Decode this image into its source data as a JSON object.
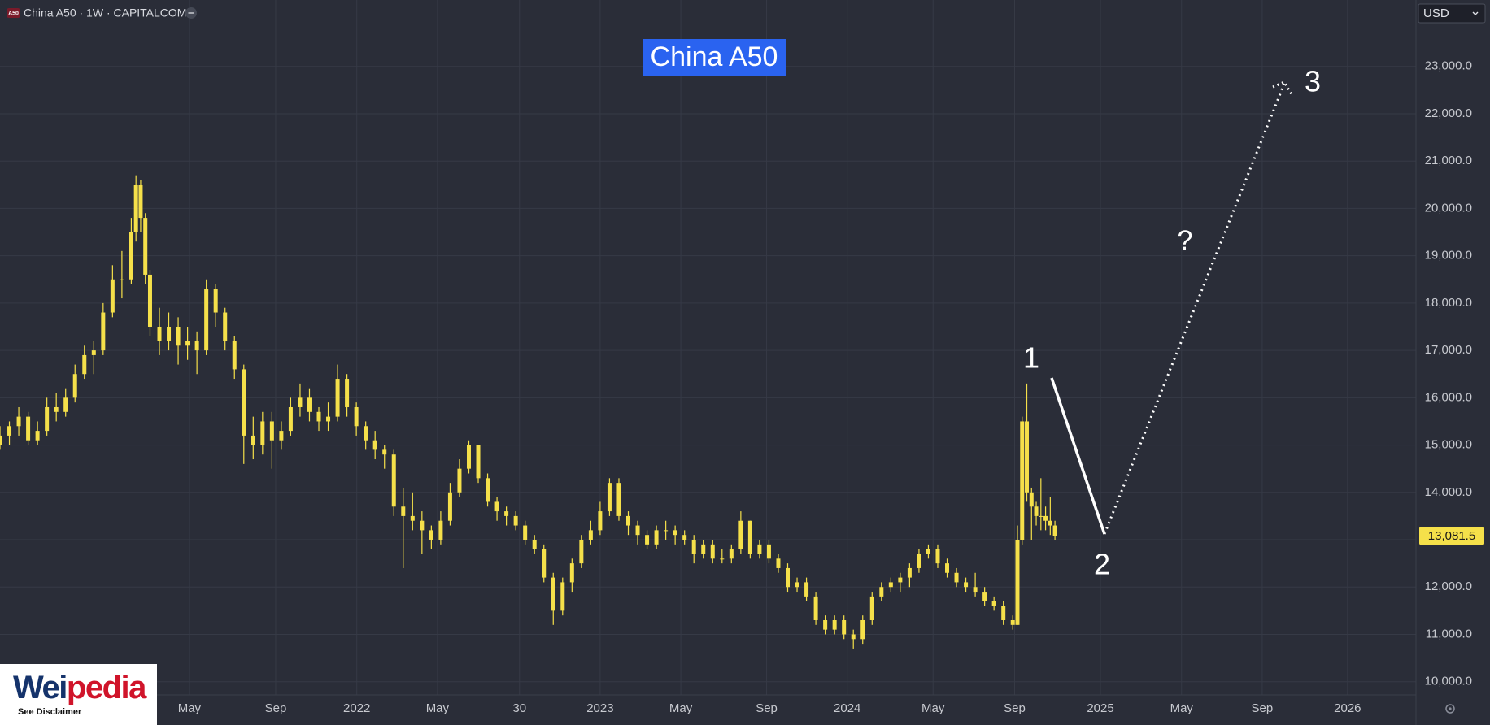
{
  "header": {
    "symbol_icon": "A50",
    "title": "China A50 · 1W · CAPITALCOM",
    "currency": "USD"
  },
  "logo": {
    "wordmark": [
      "Wei",
      "pedia"
    ],
    "note": "See Disclaimer"
  },
  "chart_data": {
    "type": "candlestick",
    "title": "China A50",
    "up_color": "#f5e04a",
    "down_color": "#f5e04a",
    "grid": true,
    "xlim": [
      0,
      302
    ],
    "xticks": [
      {
        "value": 40.4,
        "label": "May"
      },
      {
        "value": 58.8,
        "label": "Sep"
      },
      {
        "value": 76.1,
        "label": "2022"
      },
      {
        "value": 93.3,
        "label": "May"
      },
      {
        "value": 110.8,
        "label": "30"
      },
      {
        "value": 128,
        "label": "2023"
      },
      {
        "value": 145.2,
        "label": "May"
      },
      {
        "value": 163.5,
        "label": "Sep"
      },
      {
        "value": 180.7,
        "label": "2024"
      },
      {
        "value": 199,
        "label": "May"
      },
      {
        "value": 216.4,
        "label": "Sep"
      },
      {
        "value": 234.7,
        "label": "2025"
      },
      {
        "value": 252,
        "label": "May"
      },
      {
        "value": 269.2,
        "label": "Sep"
      },
      {
        "value": 287.4,
        "label": "2026"
      }
    ],
    "ylim": [
      9720,
      24404
    ],
    "yticks": [
      {
        "value": 10000,
        "label": "10,000.0"
      },
      {
        "value": 11000,
        "label": "11,000.0"
      },
      {
        "value": 12000,
        "label": "12,000.0"
      },
      {
        "value": 13000,
        "label": "13,000.0"
      },
      {
        "value": 14000,
        "label": "14,000.0"
      },
      {
        "value": 15000,
        "label": "15,000.0"
      },
      {
        "value": 16000,
        "label": "16,000.0"
      },
      {
        "value": 17000,
        "label": "17,000.0"
      },
      {
        "value": 18000,
        "label": "18,000.0"
      },
      {
        "value": 19000,
        "label": "19,000.0"
      },
      {
        "value": 20000,
        "label": "20,000.0"
      },
      {
        "value": 21000,
        "label": "21,000.0"
      },
      {
        "value": 22000,
        "label": "22,000.0"
      },
      {
        "value": 23000,
        "label": "23,000.0"
      }
    ],
    "last_price": {
      "value": 13081.5,
      "label": "13,081.5"
    },
    "annotations": [
      "1",
      "2",
      "3",
      "?"
    ],
    "candles": [
      [
        0,
        15000,
        15400,
        14900,
        15200
      ],
      [
        2,
        15200,
        15500,
        15000,
        15400
      ],
      [
        4,
        15400,
        15800,
        15200,
        15600
      ],
      [
        6,
        15600,
        15700,
        15000,
        15100
      ],
      [
        8,
        15100,
        15500,
        15000,
        15300
      ],
      [
        10,
        15300,
        16000,
        15200,
        15800
      ],
      [
        12,
        15800,
        16100,
        15500,
        15700
      ],
      [
        14,
        15700,
        16200,
        15600,
        16000
      ],
      [
        16,
        16000,
        16700,
        15900,
        16500
      ],
      [
        18,
        16500,
        17100,
        16400,
        16900
      ],
      [
        20,
        16900,
        17200,
        16500,
        17000
      ],
      [
        22,
        17000,
        18000,
        16900,
        17800
      ],
      [
        24,
        17800,
        18800,
        17700,
        18500
      ],
      [
        26,
        18500,
        19100,
        18100,
        18500
      ],
      [
        28,
        18500,
        19800,
        18400,
        19500
      ],
      [
        29,
        19500,
        20700,
        19300,
        20500
      ],
      [
        30,
        20500,
        20600,
        19500,
        19800
      ],
      [
        31,
        19800,
        19900,
        18400,
        18600
      ],
      [
        32,
        18600,
        18700,
        17300,
        17500
      ],
      [
        34,
        17500,
        17900,
        16900,
        17200
      ],
      [
        36,
        17200,
        17800,
        17000,
        17500
      ],
      [
        38,
        17500,
        17700,
        16700,
        17100
      ],
      [
        40,
        17100,
        17500,
        16800,
        17200
      ],
      [
        42,
        17200,
        17400,
        16500,
        17000
      ],
      [
        44,
        17000,
        18500,
        16900,
        18300
      ],
      [
        46,
        18300,
        18400,
        17500,
        17800
      ],
      [
        48,
        17800,
        17900,
        17000,
        17200
      ],
      [
        50,
        17200,
        17300,
        16400,
        16600
      ],
      [
        52,
        16600,
        16700,
        14600,
        15200
      ],
      [
        54,
        15200,
        15600,
        14700,
        15000
      ],
      [
        56,
        15000,
        15700,
        14800,
        15500
      ],
      [
        58,
        15500,
        15700,
        14500,
        15100
      ],
      [
        60,
        15100,
        15500,
        14900,
        15300
      ],
      [
        62,
        15300,
        16000,
        15200,
        15800
      ],
      [
        64,
        15800,
        16300,
        15600,
        16000
      ],
      [
        66,
        16000,
        16200,
        15500,
        15700
      ],
      [
        68,
        15700,
        15800,
        15300,
        15500
      ],
      [
        70,
        15500,
        15900,
        15300,
        15600
      ],
      [
        72,
        15600,
        16700,
        15500,
        16400
      ],
      [
        74,
        16400,
        16500,
        15600,
        15800
      ],
      [
        76,
        15800,
        15900,
        15200,
        15400
      ],
      [
        78,
        15400,
        15500,
        14900,
        15100
      ],
      [
        80,
        15100,
        15300,
        14700,
        14900
      ],
      [
        82,
        14900,
        15000,
        14500,
        14800
      ],
      [
        84,
        14800,
        14900,
        13500,
        13700
      ],
      [
        86,
        13700,
        14100,
        12400,
        13500
      ],
      [
        88,
        13500,
        14000,
        13200,
        13400
      ],
      [
        90,
        13400,
        13600,
        12700,
        13200
      ],
      [
        92,
        13200,
        13300,
        12800,
        13000
      ],
      [
        94,
        13000,
        13600,
        12900,
        13400
      ],
      [
        96,
        13400,
        14200,
        13300,
        14000
      ],
      [
        98,
        14000,
        14700,
        13900,
        14500
      ],
      [
        100,
        14500,
        15100,
        14400,
        15000
      ],
      [
        102,
        15000,
        15000,
        14200,
        14300
      ],
      [
        104,
        14300,
        14400,
        13700,
        13800
      ],
      [
        106,
        13800,
        13900,
        13400,
        13600
      ],
      [
        108,
        13600,
        13700,
        13300,
        13500
      ],
      [
        110,
        13500,
        13600,
        13200,
        13300
      ],
      [
        112,
        13300,
        13400,
        12900,
        13000
      ],
      [
        114,
        13000,
        13100,
        12700,
        12800
      ],
      [
        116,
        12800,
        12900,
        12100,
        12200
      ],
      [
        118,
        12200,
        12300,
        11200,
        11500
      ],
      [
        120,
        11500,
        12200,
        11400,
        12100
      ],
      [
        122,
        12100,
        12600,
        11900,
        12500
      ],
      [
        124,
        12500,
        13100,
        12400,
        13000
      ],
      [
        126,
        13000,
        13400,
        12900,
        13200
      ],
      [
        128,
        13200,
        13800,
        13100,
        13600
      ],
      [
        130,
        13600,
        14300,
        13500,
        14200
      ],
      [
        132,
        14200,
        14300,
        13400,
        13500
      ],
      [
        134,
        13500,
        13600,
        13100,
        13300
      ],
      [
        136,
        13300,
        13400,
        12900,
        13100
      ],
      [
        138,
        13100,
        13200,
        12800,
        12900
      ],
      [
        140,
        12900,
        13300,
        12800,
        13200
      ],
      [
        142,
        13200,
        13400,
        13000,
        13200
      ],
      [
        144,
        13200,
        13300,
        12900,
        13100
      ],
      [
        146,
        13100,
        13200,
        12900,
        13000
      ],
      [
        148,
        13000,
        13100,
        12500,
        12700
      ],
      [
        150,
        12700,
        13000,
        12600,
        12900
      ],
      [
        152,
        12900,
        13000,
        12500,
        12600
      ],
      [
        154,
        12600,
        12800,
        12500,
        12600
      ],
      [
        156,
        12600,
        12900,
        12500,
        12800
      ],
      [
        158,
        12800,
        13600,
        12700,
        13400
      ],
      [
        160,
        13400,
        13400,
        12600,
        12700
      ],
      [
        162,
        12700,
        13000,
        12600,
        12900
      ],
      [
        164,
        12900,
        13000,
        12500,
        12600
      ],
      [
        166,
        12600,
        12700,
        12300,
        12400
      ],
      [
        168,
        12400,
        12500,
        11900,
        12000
      ],
      [
        170,
        12000,
        12200,
        11900,
        12100
      ],
      [
        172,
        12100,
        12200,
        11700,
        11800
      ],
      [
        174,
        11800,
        11900,
        11200,
        11300
      ],
      [
        176,
        11300,
        11400,
        11000,
        11100
      ],
      [
        178,
        11100,
        11400,
        11000,
        11300
      ],
      [
        180,
        11300,
        11400,
        10900,
        11000
      ],
      [
        182,
        11000,
        11100,
        10700,
        10900
      ],
      [
        184,
        10900,
        11400,
        10800,
        11300
      ],
      [
        186,
        11300,
        11900,
        11200,
        11800
      ],
      [
        188,
        11800,
        12100,
        11700,
        12000
      ],
      [
        190,
        12000,
        12200,
        11900,
        12100
      ],
      [
        192,
        12100,
        12300,
        11900,
        12200
      ],
      [
        194,
        12200,
        12500,
        12000,
        12400
      ],
      [
        196,
        12400,
        12800,
        12300,
        12700
      ],
      [
        198,
        12700,
        12900,
        12600,
        12800
      ],
      [
        200,
        12800,
        12900,
        12400,
        12500
      ],
      [
        202,
        12500,
        12600,
        12200,
        12300
      ],
      [
        204,
        12300,
        12400,
        12000,
        12100
      ],
      [
        206,
        12100,
        12200,
        11900,
        12000
      ],
      [
        208,
        12000,
        12300,
        11800,
        11900
      ],
      [
        210,
        11900,
        12000,
        11600,
        11700
      ],
      [
        212,
        11700,
        11800,
        11500,
        11600
      ],
      [
        214,
        11600,
        11700,
        11200,
        11300
      ],
      [
        216,
        11300,
        11400,
        11100,
        11200
      ],
      [
        217,
        11200,
        13300,
        11200,
        13000
      ],
      [
        218,
        13000,
        15600,
        12900,
        15500
      ],
      [
        219,
        15500,
        16300,
        13800,
        14000
      ],
      [
        220,
        14000,
        14100,
        13000,
        13700
      ],
      [
        221,
        13700,
        13800,
        13300,
        13500
      ],
      [
        222,
        13500,
        14300,
        13200,
        13500
      ],
      [
        223,
        13500,
        13700,
        13200,
        13400
      ],
      [
        224,
        13400,
        13900,
        13100,
        13300
      ],
      [
        225,
        13300,
        13400,
        13000,
        13081.5
      ]
    ]
  }
}
